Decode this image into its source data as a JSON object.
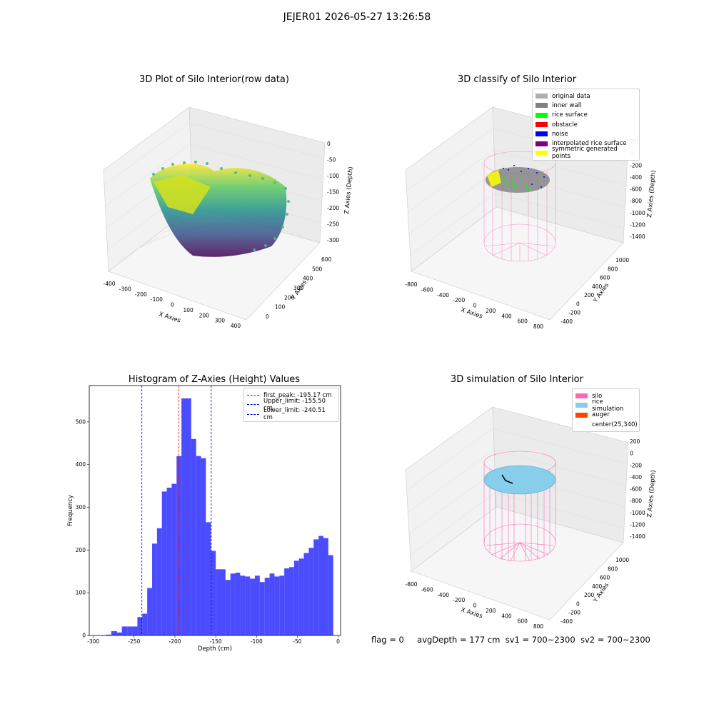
{
  "suptitle": "JEJER01 2026-05-27 13:26:58",
  "panels": {
    "raw": {
      "title": "3D Plot of Silo Interior(row data)",
      "xlabel": "X Axies",
      "ylabel": "Y Axies",
      "zlabel": "Z Axies (Depth)",
      "xticks": [
        "-400",
        "-300",
        "-200",
        "-100",
        "0",
        "100",
        "200",
        "300",
        "400"
      ],
      "yticks": [
        "0",
        "100",
        "200",
        "300",
        "400",
        "500",
        "600"
      ],
      "zticks": [
        "0",
        "-50",
        "-100",
        "-150",
        "-200",
        "-250",
        "-300"
      ],
      "colormap": "viridis"
    },
    "classify": {
      "title": "3D classify of Silo Interior",
      "xlabel": "X Axies",
      "ylabel": "Y Axies",
      "zlabel": "Z Axies (Depth)",
      "xticks": [
        "-800",
        "-600",
        "-400",
        "-200",
        "0",
        "200",
        "400",
        "600",
        "800"
      ],
      "yticks": [
        "-400",
        "-200",
        "0",
        "200",
        "400",
        "600",
        "800",
        "1000"
      ],
      "zticks": [
        "200",
        "0",
        "-200",
        "-400",
        "-600",
        "-800",
        "-1000",
        "-1200",
        "-1400"
      ],
      "legend": [
        {
          "label": "original data",
          "color": "#b0b0b0"
        },
        {
          "label": "inner wall",
          "color": "#808080"
        },
        {
          "label": "rice surface",
          "color": "#00ff00"
        },
        {
          "label": "obstacle",
          "color": "#ff0000"
        },
        {
          "label": "noise",
          "color": "#0000ff"
        },
        {
          "label": "interpolated rice surface",
          "color": "#800080"
        },
        {
          "label": "symmetric generated points",
          "color": "#ffff00"
        }
      ]
    },
    "hist": {
      "title": "Histogram of Z-Axies (Height) Values",
      "xlabel": "Depth (cm)",
      "ylabel": "Frequency",
      "xticks": [
        "-300",
        "-250",
        "-200",
        "-150",
        "-100",
        "-50",
        "0"
      ],
      "yticks": [
        "0",
        "100",
        "200",
        "300",
        "400",
        "500"
      ],
      "legend": [
        {
          "label": "first_peak: -195.17 cm",
          "color": "#ff0000"
        },
        {
          "label": "Upper_limit: -155.50 cm",
          "color": "#0000cc"
        },
        {
          "label": "Lower_limit: -240.51 cm",
          "color": "#0000cc"
        }
      ]
    },
    "sim": {
      "title": "3D simulation of Silo Interior",
      "xlabel": "X Axies",
      "ylabel": "Y Axies",
      "zlabel": "Z Axies (Depth)",
      "xticks": [
        "-800",
        "-600",
        "-400",
        "-200",
        "0",
        "200",
        "400",
        "600",
        "800"
      ],
      "yticks": [
        "-400",
        "-200",
        "0",
        "200",
        "400",
        "600",
        "800",
        "1000"
      ],
      "zticks": [
        "200",
        "0",
        "-200",
        "-400",
        "-600",
        "-800",
        "-1000",
        "-1200",
        "-1400"
      ],
      "legend": [
        {
          "label": "silo",
          "color": "#ff69b4"
        },
        {
          "label": "rice simulation",
          "color": "#87ceeb"
        },
        {
          "label": "auger",
          "color": "#ff4500"
        },
        {
          "label": "center(25,340)",
          "color": ""
        }
      ]
    }
  },
  "footer": {
    "flag": "flag = 0",
    "avg": "avgDepth = 177 cm",
    "sv1": "sv1 = 700~2300",
    "sv2": "sv2 = 700~2300"
  },
  "chart_data": [
    {
      "type": "bar",
      "title": "Histogram of Z-Axies (Height) Values",
      "xlabel": "Depth (cm)",
      "ylabel": "Frequency",
      "xlim": [
        -305,
        3
      ],
      "ylim": [
        0,
        585
      ],
      "bar_color": "#0000ff",
      "bins": [
        {
          "x0": -291,
          "x1": -284,
          "v": 1
        },
        {
          "x0": -284,
          "x1": -278,
          "v": 2
        },
        {
          "x0": -278,
          "x1": -271,
          "v": 10
        },
        {
          "x0": -271,
          "x1": -265,
          "v": 7
        },
        {
          "x0": -265,
          "x1": -258,
          "v": 21
        },
        {
          "x0": -258,
          "x1": -252,
          "v": 21
        },
        {
          "x0": -252,
          "x1": -246,
          "v": 21
        },
        {
          "x0": -246,
          "x1": -240,
          "v": 43
        },
        {
          "x0": -240,
          "x1": -234,
          "v": 51
        },
        {
          "x0": -234,
          "x1": -228,
          "v": 111
        },
        {
          "x0": -228,
          "x1": -222,
          "v": 215
        },
        {
          "x0": -222,
          "x1": -216,
          "v": 251
        },
        {
          "x0": -216,
          "x1": -210,
          "v": 337
        },
        {
          "x0": -210,
          "x1": -204,
          "v": 346
        },
        {
          "x0": -204,
          "x1": -198,
          "v": 355
        },
        {
          "x0": -198,
          "x1": -192,
          "v": 420
        },
        {
          "x0": -192,
          "x1": -186,
          "v": 555
        },
        {
          "x0": -186,
          "x1": -180,
          "v": 555
        },
        {
          "x0": -180,
          "x1": -174,
          "v": 460
        },
        {
          "x0": -174,
          "x1": -168,
          "v": 420
        },
        {
          "x0": -168,
          "x1": -162,
          "v": 415
        },
        {
          "x0": -162,
          "x1": -156,
          "v": 265
        },
        {
          "x0": -156,
          "x1": -150,
          "v": 198
        },
        {
          "x0": -150,
          "x1": -144,
          "v": 155
        },
        {
          "x0": -144,
          "x1": -138,
          "v": 155
        },
        {
          "x0": -138,
          "x1": -132,
          "v": 130
        },
        {
          "x0": -132,
          "x1": -126,
          "v": 145
        },
        {
          "x0": -126,
          "x1": -120,
          "v": 147
        },
        {
          "x0": -120,
          "x1": -114,
          "v": 140
        },
        {
          "x0": -114,
          "x1": -108,
          "v": 138
        },
        {
          "x0": -108,
          "x1": -102,
          "v": 133
        },
        {
          "x0": -102,
          "x1": -96,
          "v": 140
        },
        {
          "x0": -96,
          "x1": -90,
          "v": 125
        },
        {
          "x0": -90,
          "x1": -84,
          "v": 135
        },
        {
          "x0": -84,
          "x1": -78,
          "v": 145
        },
        {
          "x0": -78,
          "x1": -72,
          "v": 138
        },
        {
          "x0": -72,
          "x1": -66,
          "v": 140
        },
        {
          "x0": -66,
          "x1": -60,
          "v": 157
        },
        {
          "x0": -60,
          "x1": -54,
          "v": 160
        },
        {
          "x0": -54,
          "x1": -48,
          "v": 175
        },
        {
          "x0": -48,
          "x1": -42,
          "v": 180
        },
        {
          "x0": -42,
          "x1": -36,
          "v": 193
        },
        {
          "x0": -36,
          "x1": -30,
          "v": 205
        },
        {
          "x0": -30,
          "x1": -24,
          "v": 225
        },
        {
          "x0": -24,
          "x1": -18,
          "v": 233
        },
        {
          "x0": -18,
          "x1": -12,
          "v": 228
        },
        {
          "x0": -12,
          "x1": -6,
          "v": 188
        }
      ],
      "vlines": [
        {
          "name": "first_peak",
          "x": -195.17,
          "color": "#ff0000"
        },
        {
          "name": "Upper_limit",
          "x": -155.5,
          "color": "#0000cc"
        },
        {
          "name": "Lower_limit",
          "x": -240.51,
          "color": "#0000cc"
        }
      ]
    }
  ]
}
